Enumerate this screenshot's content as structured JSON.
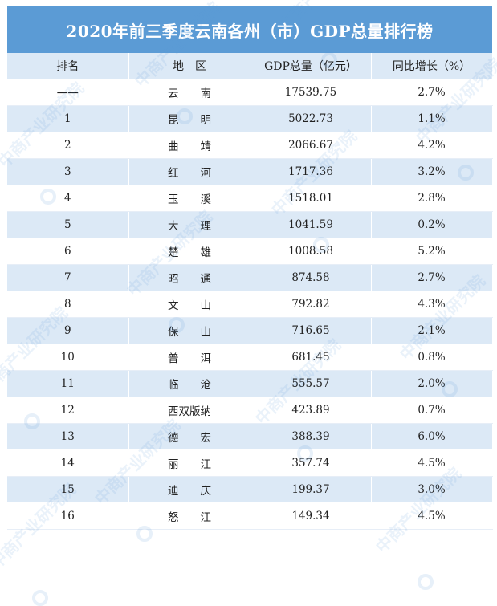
{
  "title": "2020年前三季度云南各州（市）GDP总量排行榜",
  "columns": [
    "排名",
    "地　区",
    "GDP总量（亿元）",
    "同比增长（%）"
  ],
  "rows": [
    {
      "rank": "一一",
      "region": "云　　南",
      "gdp": "17539.75",
      "growth": "2.7%"
    },
    {
      "rank": "1",
      "region": "昆　　明",
      "gdp": "5022.73",
      "growth": "1.1%"
    },
    {
      "rank": "2",
      "region": "曲　　靖",
      "gdp": "2066.67",
      "growth": "4.2%"
    },
    {
      "rank": "3",
      "region": "红　　河",
      "gdp": "1717.36",
      "growth": "3.2%"
    },
    {
      "rank": "4",
      "region": "玉　　溪",
      "gdp": "1518.01",
      "growth": "2.8%"
    },
    {
      "rank": "5",
      "region": "大　　理",
      "gdp": "1041.59",
      "growth": "0.2%"
    },
    {
      "rank": "6",
      "region": "楚　　雄",
      "gdp": "1008.58",
      "growth": "5.2%"
    },
    {
      "rank": "7",
      "region": "昭　　通",
      "gdp": "874.58",
      "growth": "2.7%"
    },
    {
      "rank": "8",
      "region": "文　　山",
      "gdp": "792.82",
      "growth": "4.3%"
    },
    {
      "rank": "9",
      "region": "保　　山",
      "gdp": "716.65",
      "growth": "2.1%"
    },
    {
      "rank": "10",
      "region": "普　　洱",
      "gdp": "681.45",
      "growth": "0.8%"
    },
    {
      "rank": "11",
      "region": "临　　沧",
      "gdp": "555.57",
      "growth": "2.0%"
    },
    {
      "rank": "12",
      "region": "西双版纳",
      "gdp": "423.89",
      "growth": "0.7%"
    },
    {
      "rank": "13",
      "region": "德　　宏",
      "gdp": "388.39",
      "growth": "6.0%"
    },
    {
      "rank": "14",
      "region": "丽　　江",
      "gdp": "357.74",
      "growth": "4.5%"
    },
    {
      "rank": "15",
      "region": "迪　　庆",
      "gdp": "199.37",
      "growth": "3.0%"
    },
    {
      "rank": "16",
      "region": "怒　　江",
      "gdp": "149.34",
      "growth": "4.5%"
    }
  ],
  "watermark_text": "中商产业研究院",
  "colors": {
    "header_blue": "#5b9bd5",
    "row_alt": "#dce9f6"
  }
}
